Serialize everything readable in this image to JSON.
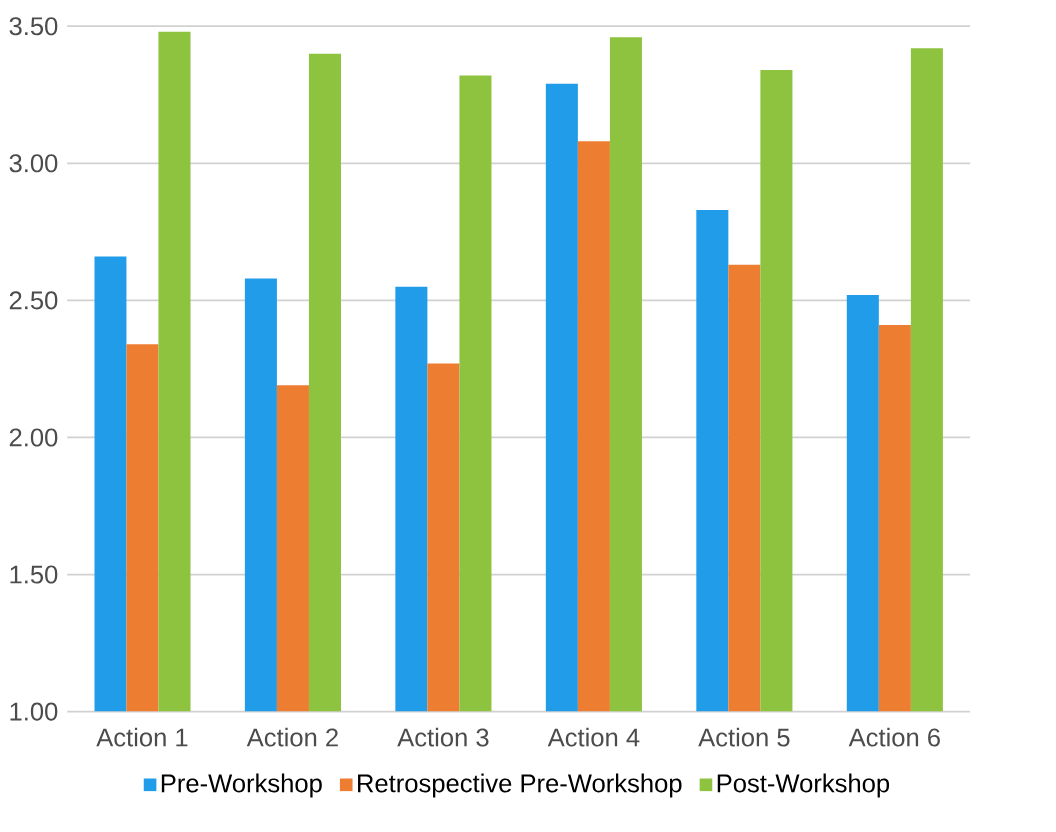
{
  "chart_data": {
    "type": "bar",
    "categories": [
      "Action 1",
      "Action 2",
      "Action 3",
      "Action 4",
      "Action 5",
      "Action 6"
    ],
    "series": [
      {
        "name": "Pre-Workshop",
        "color": "#209ce8",
        "values": [
          2.66,
          2.58,
          2.55,
          3.29,
          2.83,
          2.52
        ]
      },
      {
        "name": "Retrospective Pre-Workshop",
        "color": "#ed7d31",
        "values": [
          2.34,
          2.19,
          2.27,
          3.08,
          2.63,
          2.41
        ]
      },
      {
        "name": "Post-Workshop",
        "color": "#8dc33f",
        "values": [
          3.48,
          3.4,
          3.32,
          3.46,
          3.34,
          3.42
        ]
      }
    ],
    "ylim": [
      1,
      3.5
    ],
    "yticks": [
      {
        "value": 1,
        "label": "1.00"
      },
      {
        "value": 1.5,
        "label": "1.50"
      },
      {
        "value": 2,
        "label": "2.00"
      },
      {
        "value": 2.5,
        "label": "2.50"
      },
      {
        "value": 3,
        "label": "3.00"
      },
      {
        "value": 3.5,
        "label": "3.50"
      }
    ],
    "grid": "y",
    "legend": "bottom"
  }
}
